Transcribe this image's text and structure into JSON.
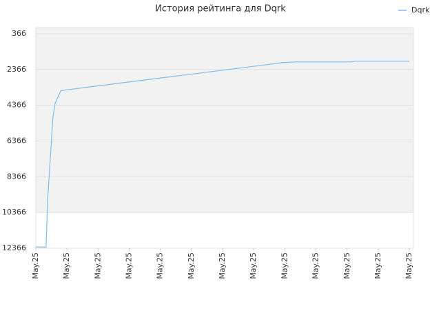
{
  "chart_data": {
    "type": "line",
    "title": "История рейтинга для Dqrk",
    "x": [
      0,
      0.33,
      0.38,
      0.55,
      0.62,
      0.8,
      0.91,
      7.93,
      8.37,
      10.14,
      10.25,
      12
    ],
    "series": [
      {
        "name": "Dqrk",
        "color": "#88c0ec",
        "values": [
          12300,
          12300,
          9640,
          5020,
          4250,
          3560,
          3520,
          1980,
          1940,
          1940,
          1900,
          1900
        ]
      }
    ],
    "xlim": [
      0,
      12.13
    ],
    "xticks": [
      {
        "value": 0,
        "label": "May.25"
      },
      {
        "value": 1,
        "label": "May.25"
      },
      {
        "value": 2,
        "label": "May.25"
      },
      {
        "value": 3,
        "label": "May.25"
      },
      {
        "value": 4,
        "label": "May.25"
      },
      {
        "value": 5,
        "label": "May.25"
      },
      {
        "value": 6,
        "label": "May.25"
      },
      {
        "value": 7,
        "label": "May.25"
      },
      {
        "value": 8,
        "label": "May.25"
      },
      {
        "value": 9,
        "label": "May.25"
      },
      {
        "value": 10,
        "label": "May.25"
      },
      {
        "value": 11,
        "label": "May.25"
      },
      {
        "value": 12,
        "label": "May.25"
      }
    ],
    "ylim": [
      12366,
      20
    ],
    "yticks": [
      366,
      2366,
      4366,
      6366,
      8366,
      10366,
      12366
    ],
    "grid": true,
    "legend": "top-right"
  }
}
